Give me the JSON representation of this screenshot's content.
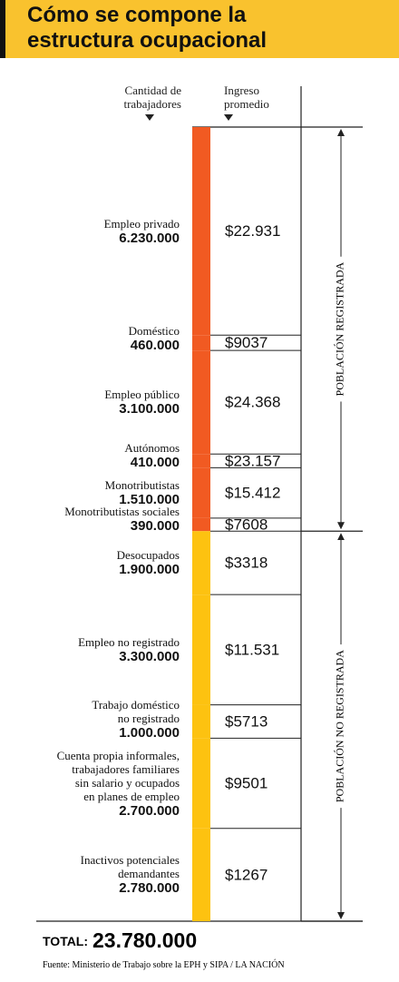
{
  "chart_data": {
    "type": "bar",
    "title": "Cómo se compone la\nestructura ocupacional",
    "count_header": "Cantidad de\ntrabajadores",
    "income_header": "Ingreso\npromedio",
    "ylim": [
      0,
      23780000
    ],
    "groups": [
      {
        "label": "POBLACIÓN REGISTRADA",
        "color": "#f15a22",
        "categories": [
          "Empleo privado",
          "Doméstico",
          "Empleo público",
          "Autónomos",
          "Monotributistas",
          "Monotributistas sociales"
        ],
        "values": [
          6230000,
          460000,
          3100000,
          410000,
          1510000,
          390000
        ],
        "value_labels": [
          "6.230.000",
          "460.000",
          "3.100.000",
          "410.000",
          "1.510.000",
          "390.000"
        ],
        "income_labels": [
          "$22.931",
          "$9037",
          "$24.368",
          "$23.157",
          "$15.412",
          "$7608"
        ]
      },
      {
        "label": "POBLACIÓN NO REGISTRADA",
        "color": "#fdc210",
        "categories": [
          "Desocupados",
          "Empleo no registrado",
          "Trabajo doméstico\nno registrado",
          "Cuenta propia informales,\ntrabajadores familiares\nsin salario y ocupados\nen planes de empleo",
          "Inactivos potenciales\ndemandantes"
        ],
        "values": [
          1900000,
          3300000,
          1000000,
          2700000,
          2780000
        ],
        "value_labels": [
          "1.900.000",
          "3.300.000",
          "1.000.000",
          "2.700.000",
          "2.780.000"
        ],
        "income_labels": [
          "$3318",
          "$11.531",
          "$5713",
          "$9501",
          "$1267"
        ]
      }
    ],
    "total_label": "TOTAL:",
    "total": {
      "value": 23780000,
      "label": "23.780.000"
    },
    "source": "Fuente: Ministerio de Trabajo sobre la EPH y SIPA / LA NACIÓN"
  }
}
